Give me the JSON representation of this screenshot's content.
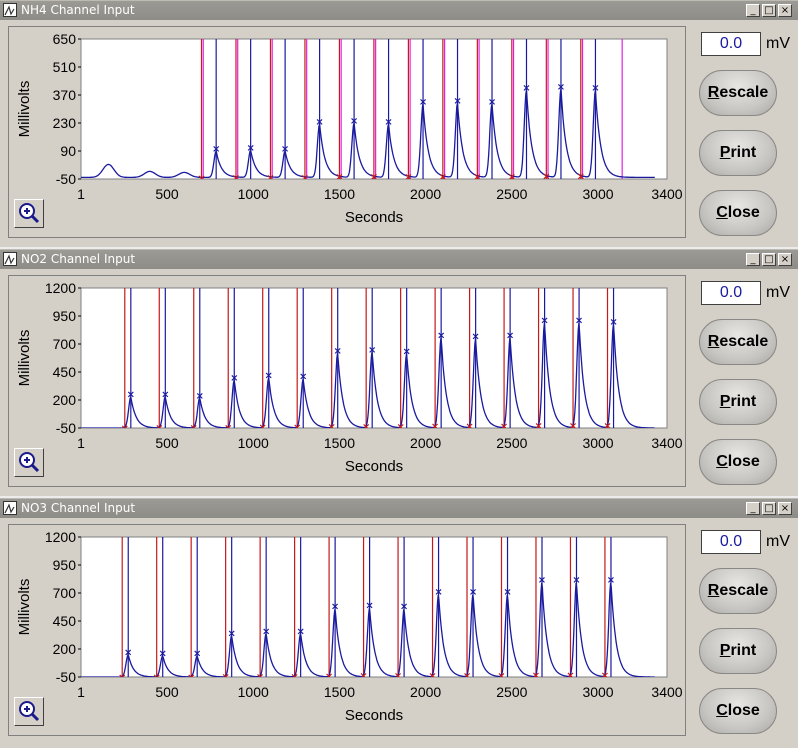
{
  "panels": [
    {
      "title": "NH4 Channel Input",
      "mv_value": "0.0",
      "mv_unit": "mV",
      "buttons": {
        "rescale": "Rescale",
        "print": "Print",
        "close": "Close"
      },
      "chart_data": {
        "type": "line",
        "xlabel": "Seconds",
        "ylabel": "Millivolts",
        "xlim": [
          1,
          3400
        ],
        "ylim": [
          -50,
          650
        ],
        "xticks": [
          "1",
          "500",
          "1000",
          "1500",
          "2000",
          "2500",
          "3000",
          "3400"
        ],
        "yticks": [
          "650",
          "510",
          "370",
          "230",
          "90",
          "-50"
        ],
        "baseline": -42,
        "hills": [
          {
            "x": 160,
            "h": 65
          },
          {
            "x": 400,
            "h": 30
          },
          {
            "x": 600,
            "h": 25
          }
        ],
        "peaks": [
          {
            "x": 785,
            "v": 90
          },
          {
            "x": 985,
            "v": 95
          },
          {
            "x": 1185,
            "v": 90
          },
          {
            "x": 1385,
            "v": 225
          },
          {
            "x": 1585,
            "v": 230
          },
          {
            "x": 1785,
            "v": 225
          },
          {
            "x": 1985,
            "v": 325
          },
          {
            "x": 2185,
            "v": 330
          },
          {
            "x": 2385,
            "v": 325
          },
          {
            "x": 2585,
            "v": 395
          },
          {
            "x": 2785,
            "v": 400
          },
          {
            "x": 2985,
            "v": 395
          }
        ],
        "red_lines": [
          700,
          900,
          1100,
          1300,
          1500,
          1700,
          1900,
          2100,
          2300,
          2500,
          2700,
          2900
        ],
        "magenta_lines": [
          710,
          910,
          1110,
          1310,
          1510,
          1710,
          1910,
          2110,
          2310,
          2510,
          2710,
          2910,
          3140
        ]
      }
    },
    {
      "title": "NO2 Channel Input",
      "mv_value": "0.0",
      "mv_unit": "mV",
      "buttons": {
        "rescale": "Rescale",
        "print": "Print",
        "close": "Close"
      },
      "chart_data": {
        "type": "line",
        "xlabel": "Seconds",
        "ylabel": "Millivolts",
        "xlim": [
          1,
          3400
        ],
        "ylim": [
          -50,
          1200
        ],
        "xticks": [
          "1",
          "500",
          "1000",
          "1500",
          "2000",
          "2500",
          "3000",
          "3400"
        ],
        "yticks": [
          "1200",
          "950",
          "700",
          "450",
          "200",
          "-50"
        ],
        "baseline": -50,
        "hills": [],
        "peaks": [
          {
            "x": 290,
            "v": 230
          },
          {
            "x": 490,
            "v": 230
          },
          {
            "x": 690,
            "v": 220
          },
          {
            "x": 890,
            "v": 380
          },
          {
            "x": 1090,
            "v": 400
          },
          {
            "x": 1290,
            "v": 390
          },
          {
            "x": 1490,
            "v": 620
          },
          {
            "x": 1690,
            "v": 630
          },
          {
            "x": 1890,
            "v": 615
          },
          {
            "x": 2090,
            "v": 760
          },
          {
            "x": 2290,
            "v": 750
          },
          {
            "x": 2490,
            "v": 760
          },
          {
            "x": 2690,
            "v": 890
          },
          {
            "x": 2890,
            "v": 890
          },
          {
            "x": 3090,
            "v": 880
          }
        ],
        "red_lines": [
          255,
          455,
          655,
          855,
          1055,
          1255,
          1455,
          1655,
          1855,
          2055,
          2255,
          2455,
          2655,
          2855,
          3055
        ],
        "magenta_lines": []
      }
    },
    {
      "title": "NO3 Channel Input",
      "mv_value": "0.0",
      "mv_unit": "mV",
      "buttons": {
        "rescale": "Rescale",
        "print": "Print",
        "close": "Close"
      },
      "chart_data": {
        "type": "line",
        "xlabel": "Seconds",
        "ylabel": "Millivolts",
        "xlim": [
          1,
          3400
        ],
        "ylim": [
          -50,
          1200
        ],
        "xticks": [
          "1",
          "500",
          "1000",
          "1500",
          "2000",
          "2500",
          "3000",
          "3400"
        ],
        "yticks": [
          "1200",
          "950",
          "700",
          "450",
          "200",
          "-50"
        ],
        "baseline": -50,
        "hills": [],
        "peaks": [
          {
            "x": 275,
            "v": 150
          },
          {
            "x": 475,
            "v": 140
          },
          {
            "x": 675,
            "v": 140
          },
          {
            "x": 875,
            "v": 320
          },
          {
            "x": 1075,
            "v": 340
          },
          {
            "x": 1275,
            "v": 340
          },
          {
            "x": 1475,
            "v": 560
          },
          {
            "x": 1675,
            "v": 570
          },
          {
            "x": 1875,
            "v": 560
          },
          {
            "x": 2075,
            "v": 690
          },
          {
            "x": 2275,
            "v": 690
          },
          {
            "x": 2475,
            "v": 690
          },
          {
            "x": 2675,
            "v": 800
          },
          {
            "x": 2875,
            "v": 800
          },
          {
            "x": 3075,
            "v": 800
          }
        ],
        "red_lines": [
          240,
          440,
          640,
          840,
          1040,
          1240,
          1440,
          1640,
          1840,
          2040,
          2240,
          2440,
          2640,
          2840,
          3040
        ],
        "magenta_lines": []
      }
    }
  ]
}
